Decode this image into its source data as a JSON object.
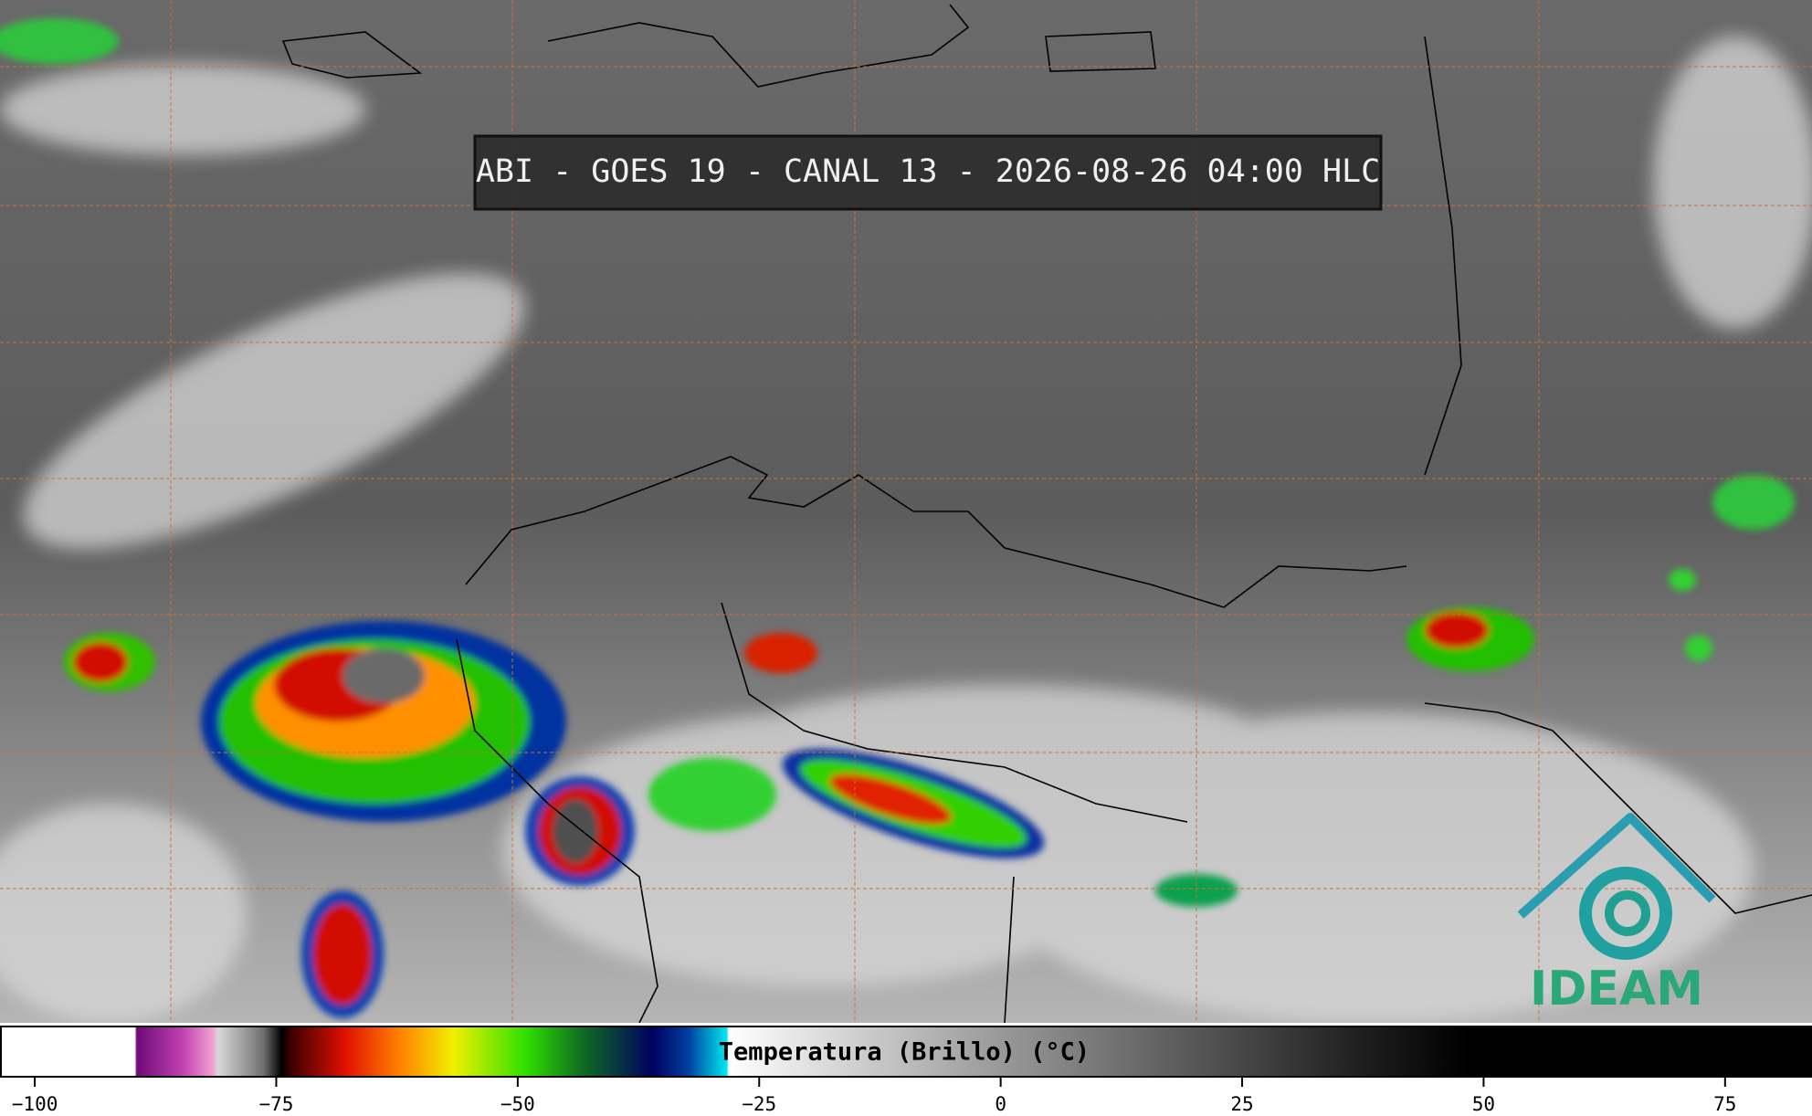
{
  "header": {
    "title": "ABI - GOES 19 - CANAL 13 - 2026-08-26 04:00 HLC"
  },
  "colorbar": {
    "label": "Temperatura (Brillo) (°C)",
    "xlim": [
      -103.6,
      84
    ],
    "ticks": [
      {
        "value": -100,
        "label": "−100"
      },
      {
        "value": -75,
        "label": "−75"
      },
      {
        "value": -50,
        "label": "−50"
      },
      {
        "value": -25,
        "label": "−25"
      },
      0,
      25,
      50,
      75
    ]
  },
  "logo": {
    "text": "IDEAM"
  }
}
